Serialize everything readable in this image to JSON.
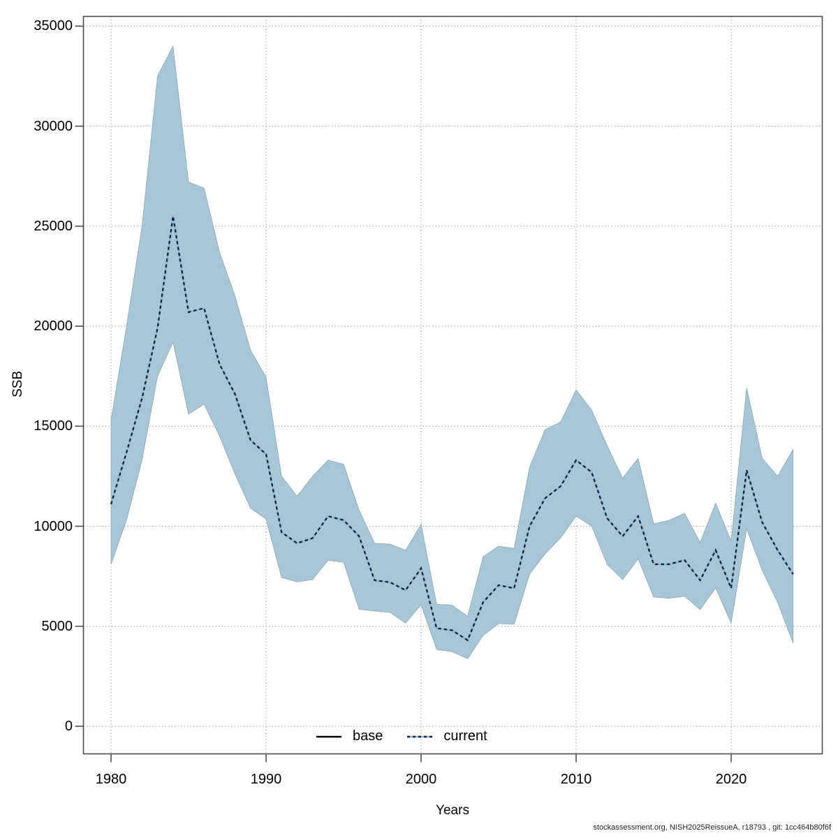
{
  "axes": {
    "x_label": "Years",
    "y_label": "SSB",
    "x_ticks": [
      1980,
      1990,
      2000,
      2010,
      2020
    ],
    "y_ticks": [
      0,
      5000,
      10000,
      15000,
      20000,
      25000,
      30000,
      35000
    ]
  },
  "legend": {
    "items": [
      {
        "label": "base",
        "style": "solid",
        "color": "#000000"
      },
      {
        "label": "current",
        "style": "dashed",
        "underlay_color": "#84b7d8",
        "dash_color": "#15212d"
      }
    ]
  },
  "footer": {
    "text": "stockassessment.org, NISH2025ReissueA, r18793 , git: 1cc464b80f6f"
  },
  "colors": {
    "ribbon": "#a9c6d7",
    "line_underlay": "#84b7d8",
    "line_dash": "#15212d",
    "grid": "#8c8c8c",
    "frame": "#4d4d4d",
    "text": "#000000"
  },
  "chart_data": {
    "type": "line",
    "title": "",
    "xlabel": "Years",
    "ylabel": "SSB",
    "ylim": [
      0,
      35000
    ],
    "xlim": [
      1980,
      2024
    ],
    "grid": true,
    "legend_position": "bottom-center",
    "x": [
      1980,
      1981,
      1982,
      1983,
      1984,
      1985,
      1986,
      1987,
      1988,
      1989,
      1990,
      1991,
      1992,
      1993,
      1994,
      1995,
      1996,
      1997,
      1998,
      1999,
      2000,
      2001,
      2002,
      2003,
      2004,
      2005,
      2006,
      2007,
      2008,
      2009,
      2010,
      2011,
      2012,
      2013,
      2014,
      2015,
      2016,
      2017,
      2018,
      2019,
      2020,
      2021,
      2022,
      2023,
      2024
    ],
    "series": [
      {
        "name": "current",
        "values": [
          11100,
          13700,
          16400,
          19900,
          25500,
          20700,
          20900,
          18100,
          16600,
          14300,
          13600,
          9700,
          9150,
          9400,
          10500,
          10300,
          9500,
          7300,
          7200,
          6800,
          7900,
          4900,
          4800,
          4300,
          6200,
          7050,
          6900,
          10000,
          11400,
          12000,
          13300,
          12700,
          10400,
          9500,
          10500,
          8100,
          8100,
          8300,
          7300,
          8800,
          6900,
          12800,
          10200,
          8800,
          7600
        ]
      },
      {
        "name": "current_lower_ci",
        "values": [
          8100,
          10300,
          13300,
          17500,
          19200,
          15600,
          16100,
          14500,
          12600,
          10900,
          10360,
          7430,
          7220,
          7330,
          8300,
          8200,
          5850,
          5760,
          5690,
          5160,
          6070,
          3840,
          3730,
          3380,
          4540,
          5130,
          5100,
          7610,
          8620,
          9420,
          10500,
          10010,
          8090,
          7330,
          8370,
          6460,
          6400,
          6500,
          5830,
          6910,
          5160,
          9870,
          7800,
          6180,
          4150
        ]
      },
      {
        "name": "current_upper_ci",
        "values": [
          15300,
          20000,
          25000,
          32500,
          34000,
          27200,
          26900,
          23700,
          21500,
          18800,
          17450,
          12500,
          11500,
          12500,
          13300,
          13100,
          10800,
          9150,
          9100,
          8800,
          10100,
          6100,
          6050,
          5500,
          8480,
          9000,
          8900,
          12950,
          14830,
          15210,
          16820,
          15810,
          14030,
          12400,
          13400,
          10120,
          10300,
          10640,
          9180,
          11160,
          9250,
          16920,
          13400,
          12500,
          13850
        ]
      }
    ]
  }
}
